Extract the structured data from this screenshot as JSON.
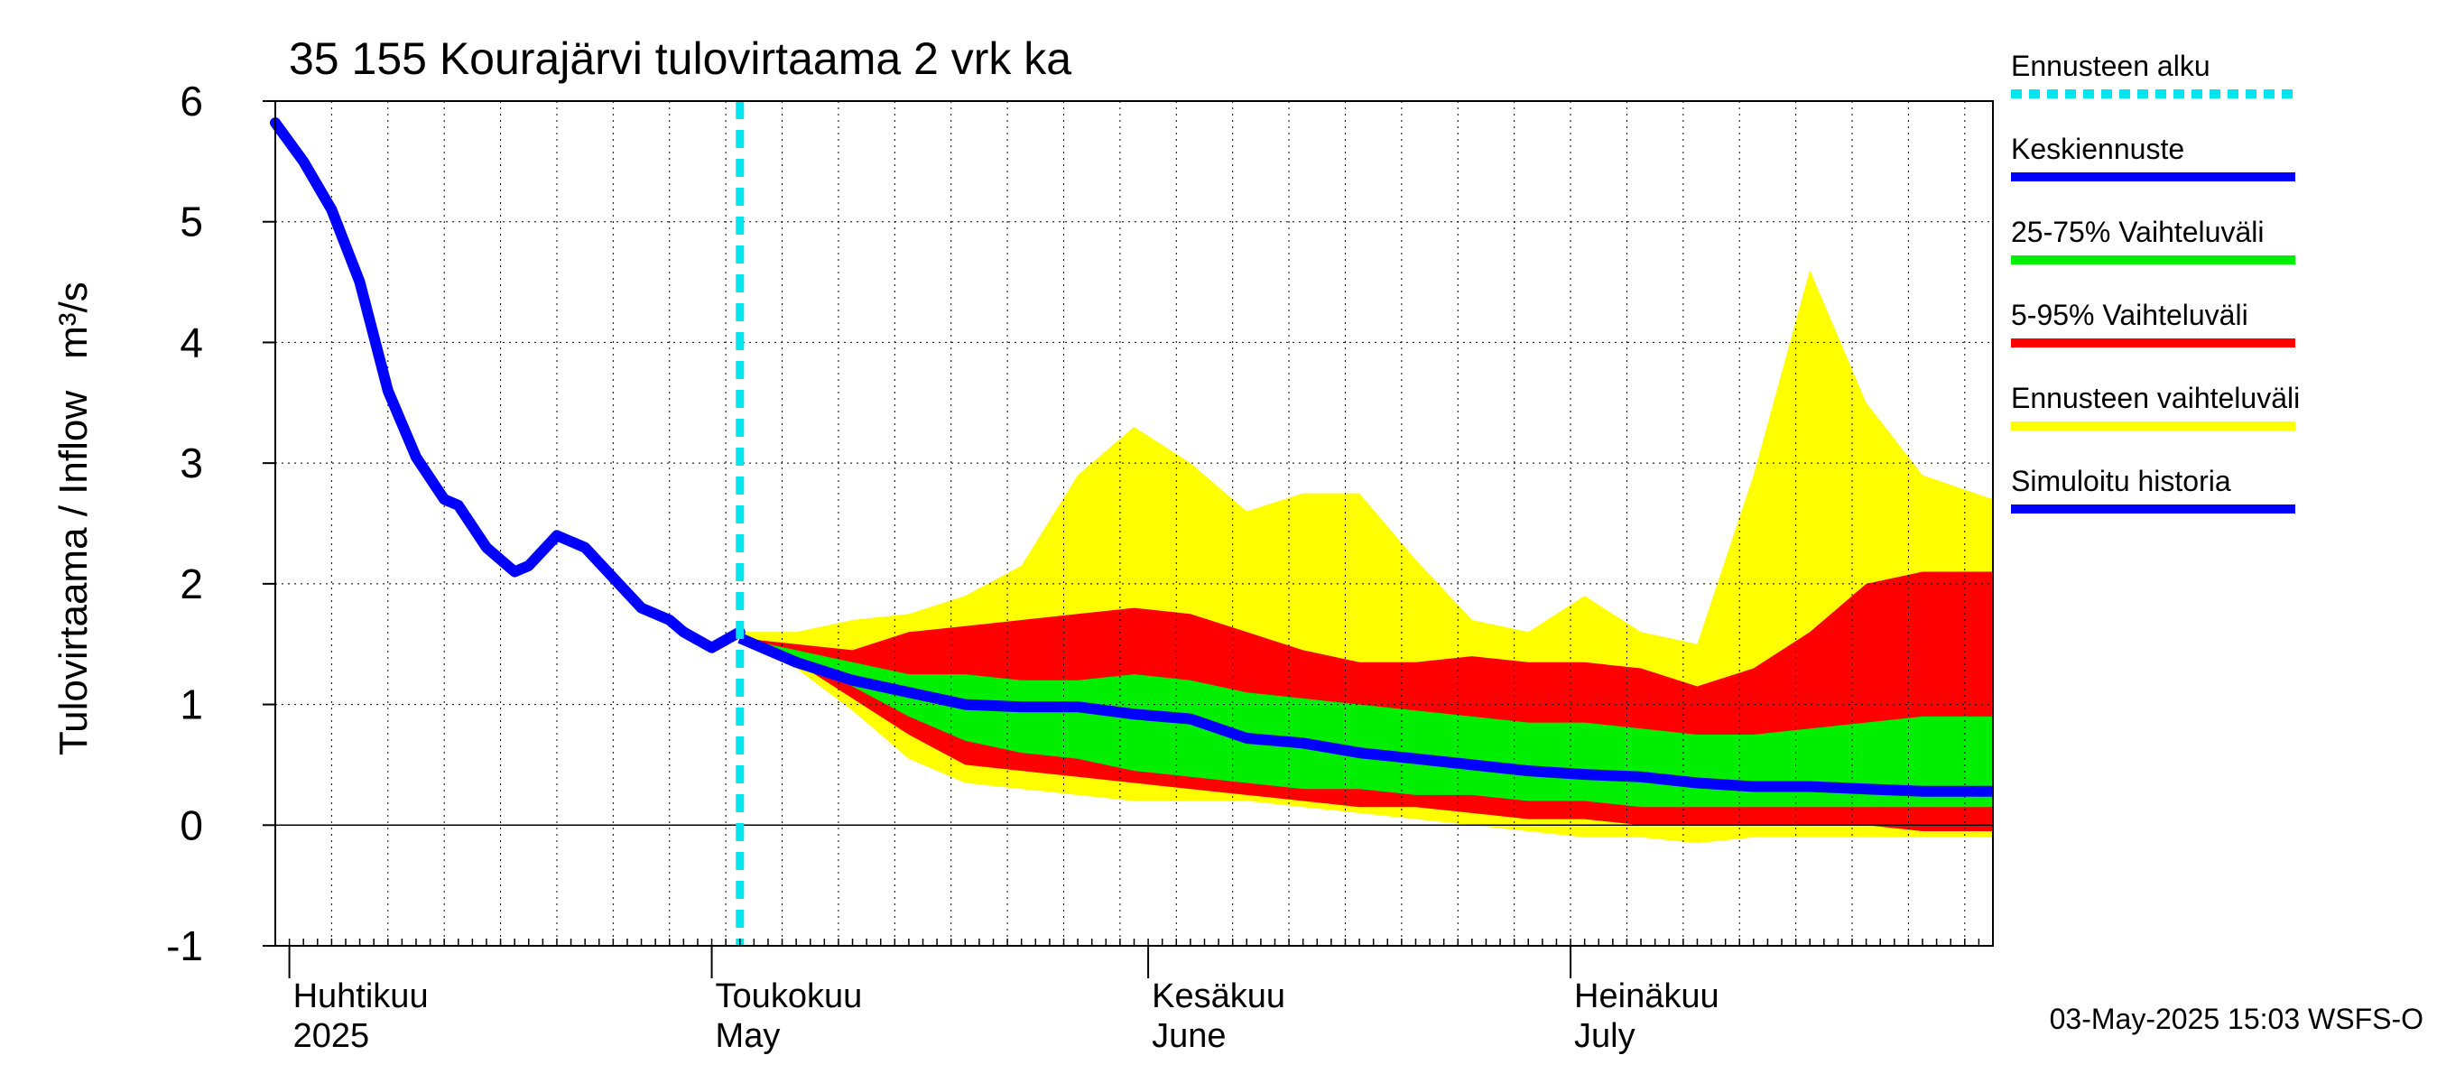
{
  "chart_data": {
    "type": "area",
    "title": "35 155 Kourajärvi tulovirtaama 2 vrk ka",
    "ylabel": "Tulovirtaama / Inflow",
    "yunit": "m³/s",
    "ylim": [
      -1,
      6
    ],
    "yticks": [
      "-1",
      "0",
      "1",
      "2",
      "3",
      "4",
      "5",
      "6"
    ],
    "xlim": [
      "2025-03-31",
      "2025-07-31"
    ],
    "month_labels": [
      {
        "date": "2025-04-01",
        "fi": "Huhtikuu",
        "en": "2025"
      },
      {
        "date": "2025-05-01",
        "fi": "Toukokuu",
        "en": "May"
      },
      {
        "date": "2025-06-01",
        "fi": "Kesäkuu",
        "en": "June"
      },
      {
        "date": "2025-07-01",
        "fi": "Heinäkuu",
        "en": "July"
      }
    ],
    "grid": true,
    "legend_position": "right",
    "forecast_start": "2025-05-03",
    "footer": "03-May-2025 15:03 WSFS-O",
    "legend": [
      {
        "label": "Ennusteen alku",
        "color": "#00e5ee",
        "style": "dashed"
      },
      {
        "label": "Keskiennuste",
        "color": "#0000ff",
        "style": "solid"
      },
      {
        "label": "25-75% Vaihteluväli",
        "color": "#00ee00",
        "style": "solid"
      },
      {
        "label": "5-95% Vaihteluväli",
        "color": "#ff0000",
        "style": "solid"
      },
      {
        "label": "Ennusteen vaihteluväli",
        "color": "#ffff00",
        "style": "solid"
      },
      {
        "label": "Simuloitu historia",
        "color": "#0000ff",
        "style": "solid"
      }
    ],
    "colors": {
      "forecast_start": "#00e5ee",
      "median": "#0000ff",
      "p25_75": "#00ee00",
      "p5_95": "#ff0000",
      "range": "#ffff00",
      "history": "#0000ff"
    },
    "history": {
      "x": [
        "2025-03-31",
        "2025-04-02",
        "2025-04-04",
        "2025-04-06",
        "2025-04-08",
        "2025-04-10",
        "2025-04-12",
        "2025-04-13",
        "2025-04-15",
        "2025-04-17",
        "2025-04-18",
        "2025-04-20",
        "2025-04-22",
        "2025-04-24",
        "2025-04-26",
        "2025-04-28",
        "2025-04-29",
        "2025-05-01",
        "2025-05-03"
      ],
      "y": [
        5.82,
        5.5,
        5.1,
        4.5,
        3.6,
        3.05,
        2.7,
        2.65,
        2.3,
        2.1,
        2.15,
        2.4,
        2.3,
        2.05,
        1.8,
        1.7,
        1.6,
        1.47,
        1.6
      ]
    },
    "forecast": {
      "x": [
        "2025-05-03",
        "2025-05-07",
        "2025-05-11",
        "2025-05-15",
        "2025-05-19",
        "2025-05-23",
        "2025-05-27",
        "2025-05-31",
        "2025-06-04",
        "2025-06-08",
        "2025-06-12",
        "2025-06-16",
        "2025-06-20",
        "2025-06-24",
        "2025-06-28",
        "2025-07-02",
        "2025-07-06",
        "2025-07-10",
        "2025-07-14",
        "2025-07-18",
        "2025-07-22",
        "2025-07-26",
        "2025-07-31"
      ],
      "min": [
        1.55,
        1.3,
        0.95,
        0.55,
        0.35,
        0.3,
        0.25,
        0.2,
        0.2,
        0.2,
        0.15,
        0.1,
        0.05,
        0.0,
        -0.05,
        -0.1,
        -0.1,
        -0.15,
        -0.1,
        -0.1,
        -0.1,
        -0.1,
        -0.1
      ],
      "p5": [
        1.55,
        1.35,
        1.05,
        0.75,
        0.5,
        0.45,
        0.4,
        0.35,
        0.3,
        0.25,
        0.2,
        0.15,
        0.15,
        0.1,
        0.05,
        0.05,
        0.0,
        0.0,
        0.0,
        0.0,
        0.0,
        -0.05,
        -0.05
      ],
      "p25": [
        1.55,
        1.4,
        1.15,
        0.9,
        0.7,
        0.6,
        0.55,
        0.45,
        0.4,
        0.35,
        0.3,
        0.3,
        0.25,
        0.25,
        0.2,
        0.2,
        0.15,
        0.15,
        0.15,
        0.15,
        0.15,
        0.15,
        0.15
      ],
      "median": [
        1.55,
        1.35,
        1.2,
        1.1,
        1.0,
        0.98,
        0.98,
        0.92,
        0.88,
        0.72,
        0.68,
        0.6,
        0.55,
        0.5,
        0.45,
        0.42,
        0.4,
        0.35,
        0.32,
        0.32,
        0.3,
        0.28,
        0.28
      ],
      "p75": [
        1.55,
        1.45,
        1.35,
        1.25,
        1.25,
        1.2,
        1.2,
        1.25,
        1.2,
        1.1,
        1.05,
        1.0,
        0.95,
        0.9,
        0.85,
        0.85,
        0.8,
        0.75,
        0.75,
        0.8,
        0.85,
        0.9,
        0.9
      ],
      "p95": [
        1.55,
        1.5,
        1.45,
        1.6,
        1.65,
        1.7,
        1.75,
        1.8,
        1.75,
        1.6,
        1.45,
        1.35,
        1.35,
        1.4,
        1.35,
        1.35,
        1.3,
        1.15,
        1.3,
        1.6,
        2.0,
        2.1,
        2.1
      ],
      "max": [
        1.6,
        1.6,
        1.7,
        1.75,
        1.9,
        2.15,
        2.9,
        3.3,
        3.0,
        2.6,
        2.75,
        2.75,
        2.2,
        1.7,
        1.6,
        1.9,
        1.6,
        1.5,
        2.9,
        4.6,
        3.5,
        2.9,
        2.7
      ]
    }
  }
}
